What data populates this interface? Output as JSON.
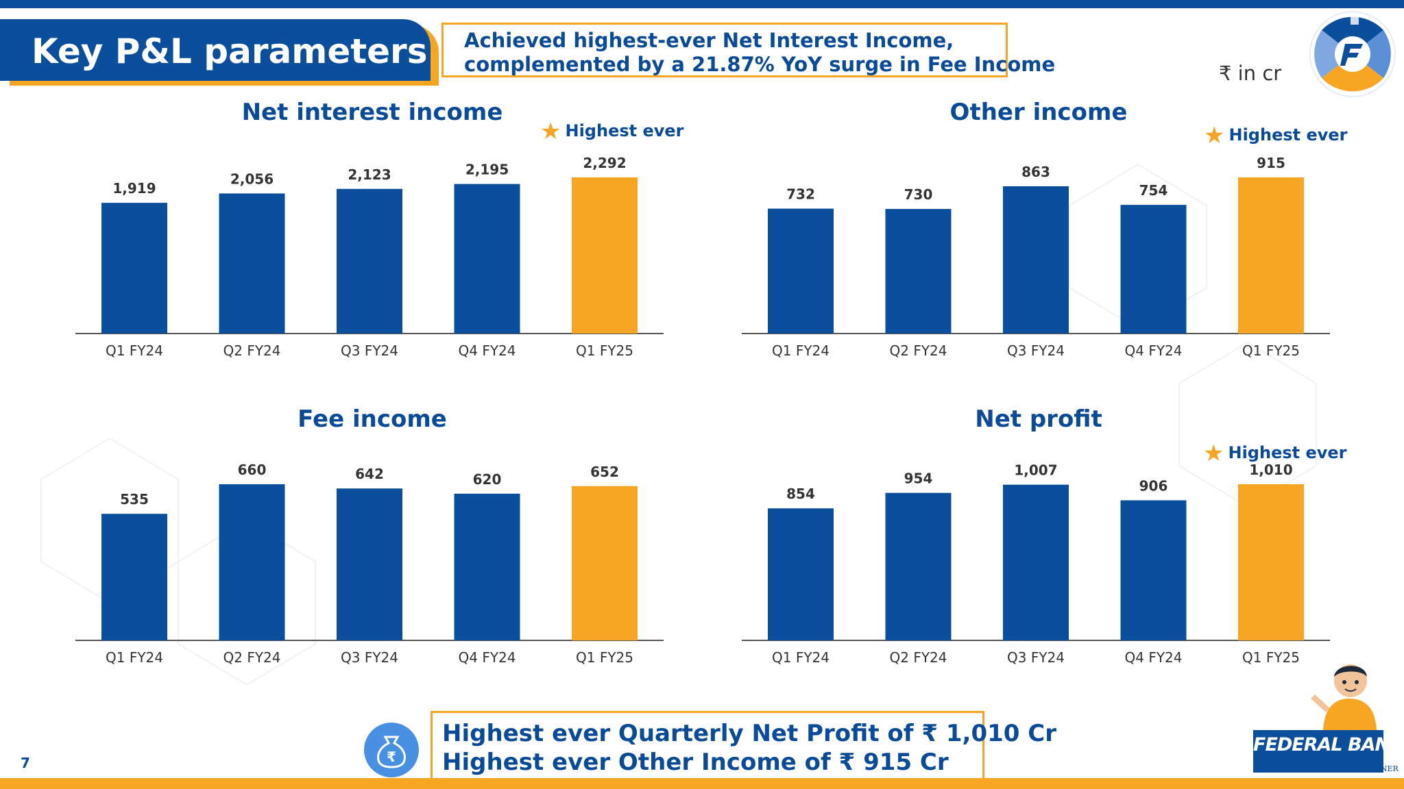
{
  "slide": {
    "title": "Key P&L parameters",
    "headline_line1": "Achieved highest-ever Net Interest Income,",
    "headline_line2": "complemented by a 21.87% YoY surge in Fee Income",
    "unit": "₹ in cr",
    "page_number": "7",
    "bottom_line1": "Highest ever Quarterly Net Profit of ₹ 1,010 Cr",
    "bottom_line2": "Highest ever Other Income of ₹ 915 Cr",
    "brand_name": "FEDERAL BANK",
    "brand_tagline": "YOUR PERFECT BANKING PARTNER",
    "highest_label": "Highest ever",
    "colors": {
      "primary": "#0b4f9c",
      "accent": "#f6a623"
    },
    "icons": [
      "star-icon",
      "money-bag-icon",
      "federal-logo-icon",
      "mascot-illustration"
    ]
  },
  "chart_data": [
    {
      "type": "bar",
      "title": "Net interest income",
      "categories": [
        "Q1 FY24",
        "Q2 FY24",
        "Q3 FY24",
        "Q4 FY24",
        "Q1 FY25"
      ],
      "values": [
        1919,
        2056,
        2123,
        2195,
        2292
      ],
      "labels": [
        "1,919",
        "2,056",
        "2,123",
        "2,195",
        "2,292"
      ],
      "highlight_index": 4,
      "highlight_label": "Highest ever",
      "ylim": [
        0,
        2500
      ]
    },
    {
      "type": "bar",
      "title": "Other income",
      "categories": [
        "Q1 FY24",
        "Q2 FY24",
        "Q3 FY24",
        "Q4 FY24",
        "Q1 FY25"
      ],
      "values": [
        732,
        730,
        863,
        754,
        915
      ],
      "labels": [
        "732",
        "730",
        "863",
        "754",
        "915"
      ],
      "highlight_index": 4,
      "highlight_label": "Highest ever",
      "ylim": [
        0,
        1000
      ]
    },
    {
      "type": "bar",
      "title": "Fee income",
      "categories": [
        "Q1 FY24",
        "Q2 FY24",
        "Q3 FY24",
        "Q4 FY24",
        "Q1 FY25"
      ],
      "values": [
        535,
        660,
        642,
        620,
        652
      ],
      "labels": [
        "535",
        "660",
        "642",
        "620",
        "652"
      ],
      "highlight_index": 4,
      "highlight_label": "",
      "ylim": [
        0,
        700
      ]
    },
    {
      "type": "bar",
      "title": "Net profit",
      "categories": [
        "Q1 FY24",
        "Q2 FY24",
        "Q3 FY24",
        "Q4 FY24",
        "Q1 FY25"
      ],
      "values": [
        854,
        954,
        1007,
        906,
        1010
      ],
      "labels": [
        "854",
        "954",
        "1,007",
        "906",
        "1,010"
      ],
      "highlight_index": 4,
      "highlight_label": "Highest ever",
      "ylim": [
        0,
        1150
      ]
    }
  ]
}
